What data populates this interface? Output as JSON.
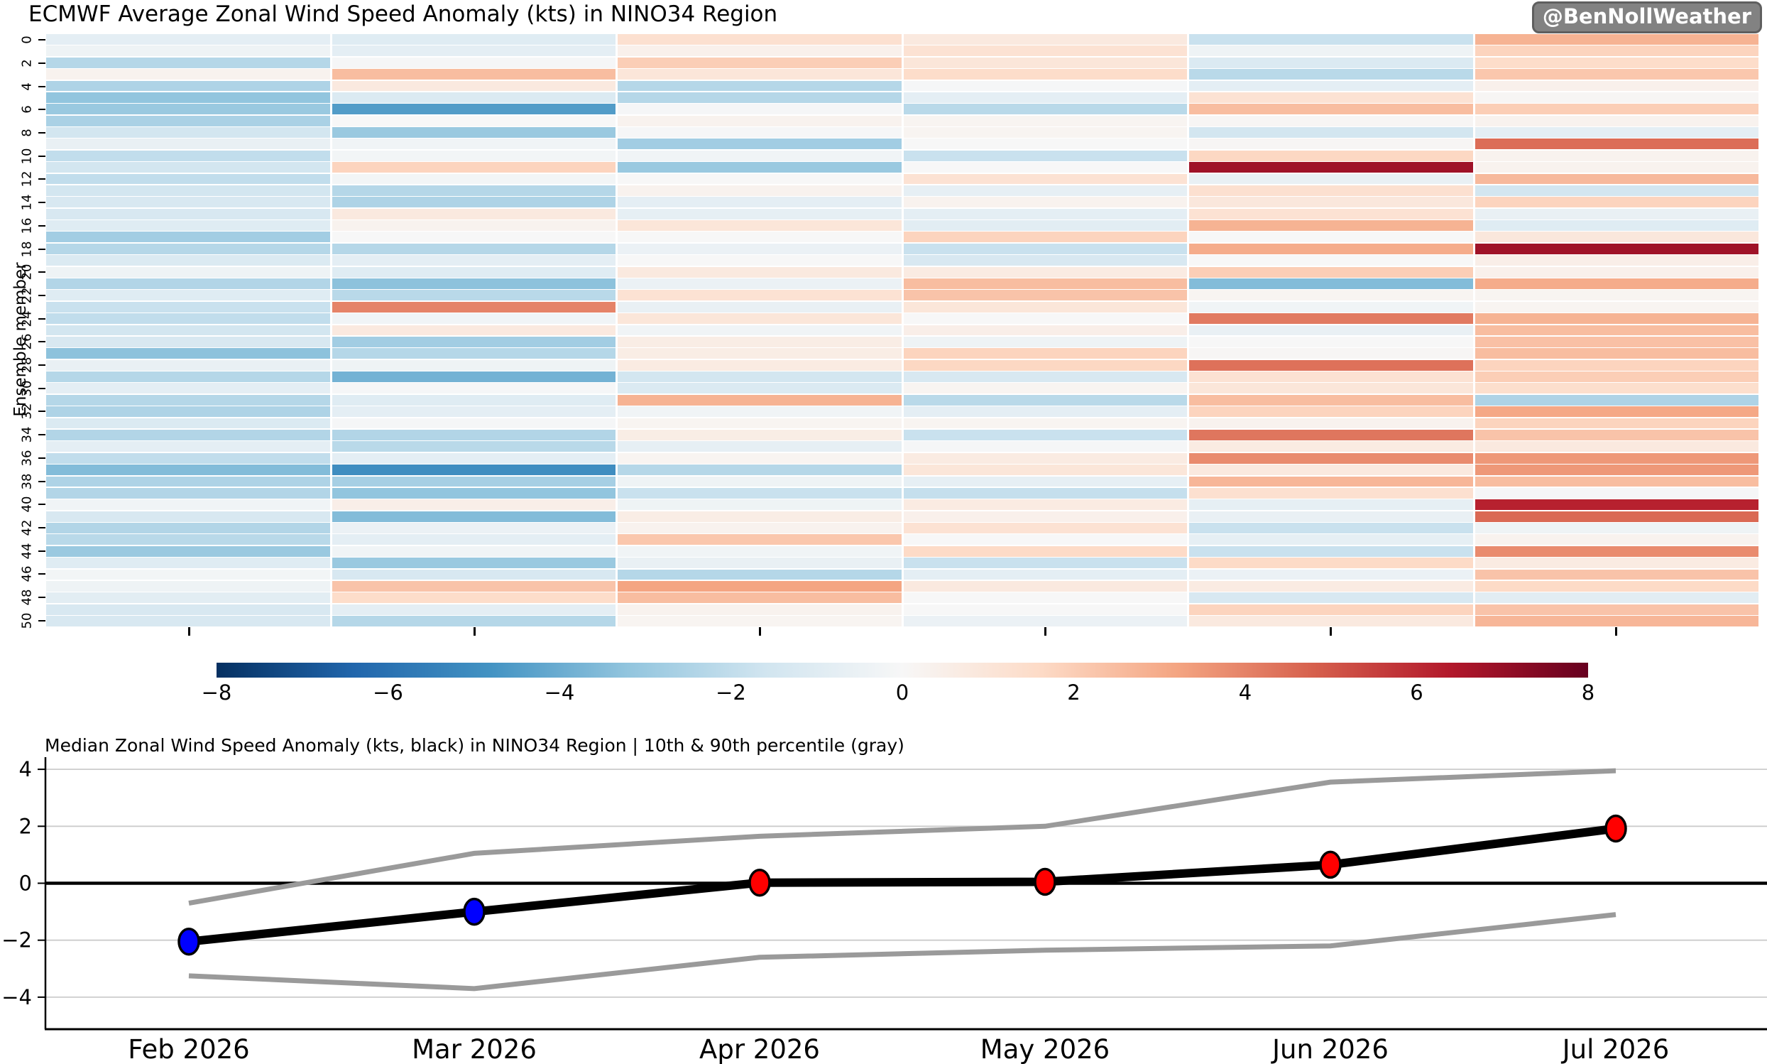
{
  "header": {
    "title": "ECMWF Average Zonal Wind Speed Anomaly (kts) in NINO34 Region",
    "badge": "@BenNollWeather"
  },
  "heatmap_axis": {
    "ylabel": "Ensemble member",
    "ytick_step": 2,
    "yticks": [
      0,
      2,
      4,
      6,
      8,
      10,
      12,
      14,
      16,
      18,
      20,
      22,
      24,
      26,
      28,
      30,
      32,
      34,
      36,
      38,
      40,
      42,
      44,
      46,
      48,
      50
    ]
  },
  "colorbar": {
    "tick_labels": [
      "−8",
      "−6",
      "−4",
      "−2",
      "0",
      "2",
      "4",
      "6",
      "8"
    ],
    "tick_values": [
      -8,
      -6,
      -4,
      -2,
      0,
      2,
      4,
      6,
      8
    ]
  },
  "line_chart": {
    "title": "Median Zonal Wind Speed Anomaly (kts, black) in NINO34 Region | 10th & 90th percentile (gray)",
    "ytick_labels": [
      "4",
      "2",
      "0",
      "−2",
      "−4"
    ],
    "ytick_values": [
      4,
      2,
      0,
      -2,
      -4
    ],
    "median_color": "#000000",
    "percentile_color": "#9a9a9a",
    "zero_line_color": "#000000",
    "grid_color": "#cccccc",
    "marker_colors": [
      "#0000ff",
      "#0000ff",
      "#ff0000",
      "#ff0000",
      "#ff0000",
      "#ff0000"
    ]
  },
  "chart_data": [
    {
      "type": "heatmap",
      "title": "ECMWF Average Zonal Wind Speed Anomaly (kts) in NINO34 Region",
      "ylabel": "Ensemble member",
      "x_categories": [
        "Feb 2026",
        "Mar 2026",
        "Apr 2026",
        "May 2026",
        "Jun 2026",
        "Jul 2026"
      ],
      "rows": 51,
      "colormap": "RdBu_r",
      "vmin": -8,
      "vmax": 8,
      "values": [
        [
          -0.8,
          -1.0,
          1.3,
          0.8,
          -1.8,
          2.8
        ],
        [
          -0.4,
          -0.8,
          0.4,
          1.2,
          -0.4,
          1.8
        ],
        [
          -2.3,
          -0.1,
          2.0,
          1.0,
          -1.2,
          1.5
        ],
        [
          0.3,
          2.5,
          1.0,
          1.5,
          -2.2,
          2.2
        ],
        [
          -2.5,
          0.8,
          -2.3,
          -0.1,
          -0.8,
          0.4
        ],
        [
          -3.2,
          -1.2,
          -2.3,
          -0.8,
          1.2,
          0.1
        ],
        [
          -3.0,
          -4.5,
          -0.1,
          -2.2,
          2.5,
          2.0
        ],
        [
          -2.6,
          0.0,
          0.3,
          0.2,
          0.1,
          0.3
        ],
        [
          -1.5,
          -3.0,
          -0.1,
          0.2,
          -1.5,
          -0.8
        ],
        [
          -0.6,
          -0.3,
          -2.8,
          0.0,
          0.1,
          4.5
        ],
        [
          -2.0,
          -0.2,
          -0.3,
          -1.8,
          1.7,
          0.3
        ],
        [
          -1.5,
          1.8,
          -3.0,
          0.0,
          6.8,
          0.3
        ],
        [
          -2.0,
          -0.2,
          0.0,
          1.2,
          -0.6,
          2.6
        ],
        [
          -1.5,
          -2.3,
          0.3,
          -0.7,
          1.3,
          -1.5
        ],
        [
          -1.3,
          -2.5,
          -0.8,
          0.3,
          0.9,
          1.8
        ],
        [
          -1.3,
          0.8,
          -0.7,
          -0.8,
          1.2,
          -0.6
        ],
        [
          -1.0,
          0.3,
          1.0,
          -0.9,
          2.8,
          -1.0
        ],
        [
          -2.8,
          0.0,
          0.0,
          1.8,
          0.0,
          0.9
        ],
        [
          -2.3,
          -2.3,
          -0.5,
          -1.8,
          3.0,
          6.8
        ],
        [
          -1.2,
          -0.8,
          0.0,
          -1.3,
          0.0,
          0.5
        ],
        [
          -0.4,
          -1.0,
          0.8,
          0.7,
          2.0,
          0.4
        ],
        [
          -2.4,
          -3.3,
          -0.5,
          2.5,
          -3.5,
          3.0
        ],
        [
          -1.0,
          -2.2,
          1.2,
          2.3,
          0.2,
          0.2
        ],
        [
          -1.8,
          4.0,
          -0.6,
          1.0,
          -0.3,
          0.2
        ],
        [
          -2.0,
          -0.3,
          1.0,
          0.0,
          4.2,
          2.8
        ],
        [
          -1.5,
          0.8,
          -0.3,
          0.5,
          -0.6,
          2.5
        ],
        [
          -1.3,
          -2.8,
          0.6,
          -0.4,
          0.0,
          2.4
        ],
        [
          -3.3,
          -2.3,
          0.6,
          1.8,
          0.1,
          2.5
        ],
        [
          -0.6,
          -0.4,
          0.7,
          1.7,
          4.4,
          1.8
        ],
        [
          -2.3,
          -3.8,
          -1.5,
          -1.3,
          1.2,
          2.0
        ],
        [
          -0.8,
          -0.1,
          -1.2,
          0.2,
          1.0,
          1.4
        ],
        [
          -2.3,
          -1.0,
          2.8,
          -2.2,
          2.5,
          -2.5
        ],
        [
          -2.5,
          -0.8,
          -0.3,
          -0.8,
          1.8,
          3.1
        ],
        [
          -1.2,
          -0.1,
          0.2,
          0.2,
          0.3,
          1.8
        ],
        [
          -2.4,
          -2.4,
          0.6,
          -1.8,
          4.3,
          2.3
        ],
        [
          -0.8,
          -2.2,
          -0.7,
          -0.1,
          0.7,
          0.8
        ],
        [
          -2.0,
          -0.8,
          0.2,
          0.7,
          3.8,
          3.5
        ],
        [
          -3.5,
          -5.0,
          -2.3,
          1.0,
          0.8,
          3.5
        ],
        [
          -2.5,
          -2.7,
          -0.4,
          -0.7,
          2.7,
          2.5
        ],
        [
          -2.4,
          -3.2,
          -1.8,
          -1.9,
          1.3,
          -0.1
        ],
        [
          -0.3,
          0.5,
          -0.4,
          0.7,
          -0.7,
          6.2
        ],
        [
          -1.3,
          -3.5,
          0.6,
          0.4,
          -0.6,
          4.6
        ],
        [
          -2.4,
          -0.5,
          0.3,
          1.2,
          -1.8,
          -0.4
        ],
        [
          -2.2,
          -0.8,
          2.2,
          0.0,
          -0.7,
          0.3
        ],
        [
          -3.0,
          -0.3,
          -0.3,
          1.6,
          -1.8,
          3.8
        ],
        [
          -1.0,
          -3.0,
          -0.6,
          -1.8,
          1.6,
          0.7
        ],
        [
          -0.2,
          -1.3,
          -2.3,
          -0.8,
          -0.5,
          2.3
        ],
        [
          -0.4,
          2.3,
          3.2,
          0.8,
          0.7,
          1.6
        ],
        [
          -0.9,
          1.5,
          2.5,
          0.0,
          -1.3,
          -0.9
        ],
        [
          -1.3,
          -0.8,
          0.3,
          0.0,
          1.8,
          2.3
        ],
        [
          -1.3,
          -2.3,
          0.2,
          -0.5,
          0.8,
          2.7
        ]
      ]
    },
    {
      "type": "line",
      "title": "Median Zonal Wind Speed Anomaly (kts, black) in NINO34 Region | 10th & 90th percentile (gray)",
      "x": [
        "Feb 2026",
        "Mar 2026",
        "Apr 2026",
        "May 2026",
        "Jun 2026",
        "Jul 2026"
      ],
      "series": [
        {
          "name": "median",
          "values": [
            -2.05,
            -1.0,
            0.02,
            0.05,
            0.65,
            1.92
          ]
        },
        {
          "name": "90th percentile",
          "values": [
            -0.7,
            1.05,
            1.65,
            2.0,
            3.55,
            3.95
          ]
        },
        {
          "name": "10th percentile",
          "values": [
            -3.25,
            -3.7,
            -2.6,
            -2.35,
            -2.2,
            -1.1
          ]
        }
      ],
      "yticks": [
        -4,
        -2,
        0,
        2,
        4
      ],
      "ylim": [
        -4.7,
        4.7
      ],
      "grid": true,
      "legend": "none"
    }
  ]
}
